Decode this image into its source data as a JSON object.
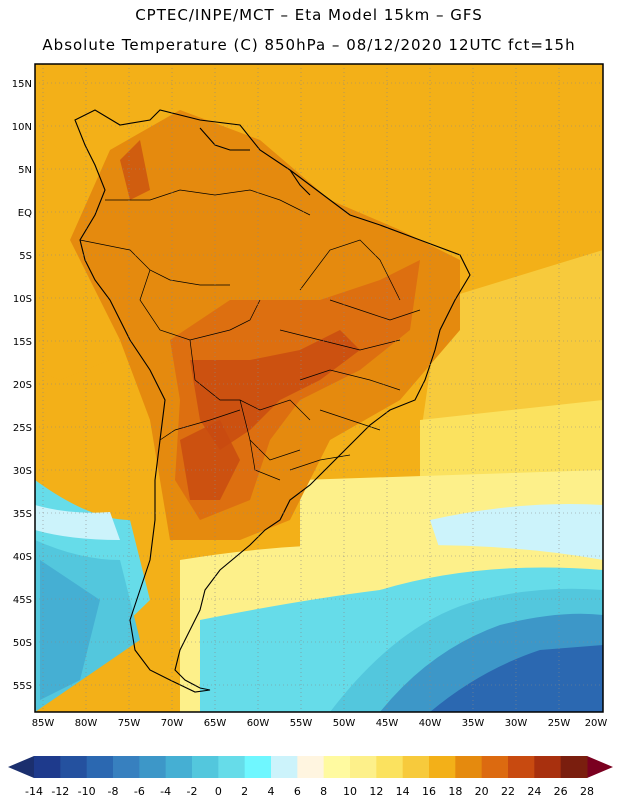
{
  "header": {
    "line1": "CPTEC/INPE/MCT –  Eta Model 15km – GFS",
    "line2": "Absolute Temperature (C) 850hPa – 08/12/2020 12UTC fct=15h"
  },
  "map": {
    "lat_labels": [
      "15N",
      "10N",
      "5N",
      "EQ",
      "5S",
      "10S",
      "15S",
      "20S",
      "25S",
      "30S",
      "35S",
      "40S",
      "45S",
      "50S",
      "55S"
    ],
    "lon_labels": [
      "85W",
      "80W",
      "75W",
      "70W",
      "65W",
      "60W",
      "55W",
      "50W",
      "45W",
      "40W",
      "35W",
      "30W",
      "25W",
      "20W"
    ],
    "frame_color": "#000000"
  },
  "colorbar": {
    "ticks": [
      "-14",
      "-12",
      "-10",
      "-8",
      "-6",
      "-4",
      "-2",
      "0",
      "2",
      "4",
      "6",
      "8",
      "10",
      "12",
      "14",
      "16",
      "18",
      "20",
      "22",
      "24",
      "26",
      "28"
    ],
    "colors": [
      "#1e3a8c",
      "#24519f",
      "#2b68b1",
      "#3780bf",
      "#3d97c8",
      "#45afd3",
      "#53c7dd",
      "#66dce9",
      "#6ff7ff",
      "#ccf3fb",
      "#fff5e0",
      "#fffaa0",
      "#fdf08a",
      "#fbe25f",
      "#f7ca3c",
      "#f3b018",
      "#e58a0e",
      "#dc6a10",
      "#c84a10",
      "#a8300e",
      "#7a1e0e"
    ],
    "left_arrow_color": "#1b2f6e",
    "right_arrow_color": "#7a0020"
  }
}
